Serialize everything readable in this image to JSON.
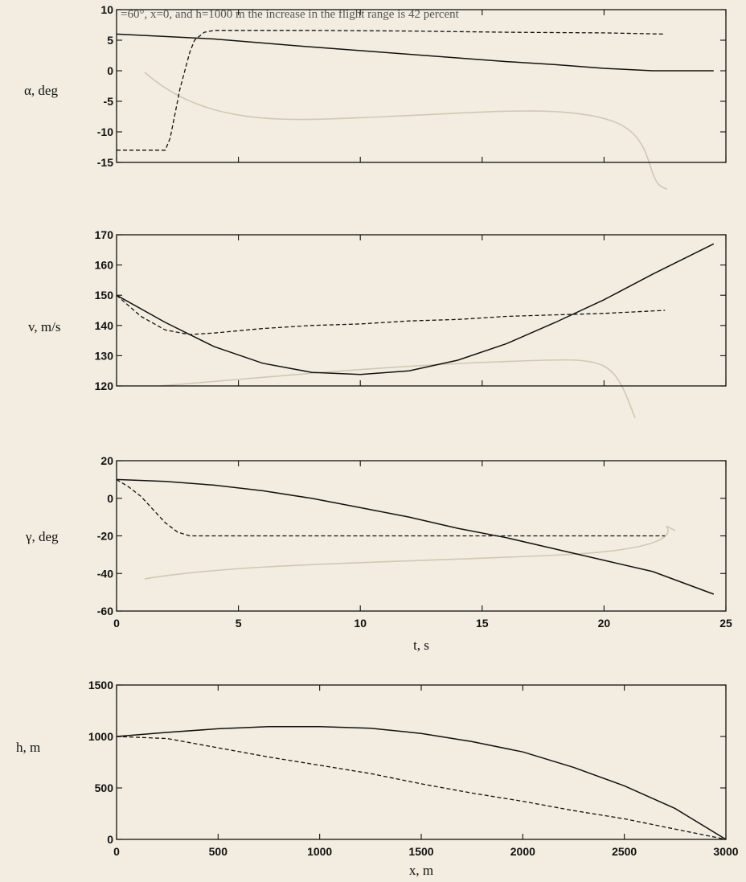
{
  "header_text": "=60°, x=0, and h=1000 m the increase in the flight range is 42 percent",
  "colors": {
    "line": "#111111",
    "background": "#f2ede0"
  },
  "chart_data": [
    {
      "type": "line",
      "id": "alpha",
      "ylabel": "α, deg",
      "xlabel": "",
      "xlim": [
        0,
        25
      ],
      "ylim": [
        -15,
        10
      ],
      "xticks": [
        0,
        5,
        10,
        15,
        20,
        25
      ],
      "xtick_labels": [],
      "yticks": [
        -15,
        -10,
        -5,
        0,
        5,
        10
      ],
      "ytick_labels": [
        "-15",
        "-10",
        "-5",
        "0",
        "5",
        "10"
      ],
      "series": [
        {
          "style": "solid",
          "x": [
            0,
            4,
            8,
            12,
            16,
            18,
            20,
            22,
            24.5
          ],
          "y": [
            6,
            5.2,
            3.9,
            2.7,
            1.5,
            1,
            0.4,
            0,
            0
          ]
        },
        {
          "style": "dashed",
          "x": [
            0,
            1,
            2,
            2.2,
            2.4,
            2.6,
            2.8,
            3,
            3.2,
            3.6,
            4,
            8,
            12,
            16,
            20,
            22.5
          ],
          "y": [
            -13,
            -13,
            -13,
            -11,
            -7,
            -3,
            0,
            3,
            5,
            6.3,
            6.6,
            6.6,
            6.5,
            6.3,
            6.2,
            6
          ]
        }
      ]
    },
    {
      "type": "line",
      "id": "v",
      "ylabel": "v, m/s",
      "xlabel": "",
      "xlim": [
        0,
        25
      ],
      "ylim": [
        120,
        170
      ],
      "xticks": [
        0,
        5,
        10,
        15,
        20,
        25
      ],
      "xtick_labels": [],
      "yticks": [
        120,
        130,
        140,
        150,
        160,
        170
      ],
      "ytick_labels": [
        "120",
        "130",
        "140",
        "150",
        "160",
        "170"
      ],
      "series": [
        {
          "style": "solid",
          "x": [
            0,
            2,
            4,
            6,
            8,
            10,
            12,
            14,
            16,
            18,
            20,
            22,
            24.5
          ],
          "y": [
            150,
            141,
            133,
            127.5,
            124.5,
            123.8,
            125,
            128.5,
            134,
            141,
            148.5,
            157,
            167
          ]
        },
        {
          "style": "dashed",
          "x": [
            0,
            1,
            2,
            3,
            4,
            6,
            8,
            10,
            12,
            14,
            16,
            18,
            20,
            22.5
          ],
          "y": [
            150,
            143,
            138.5,
            137,
            137.5,
            139,
            140,
            140.5,
            141.5,
            142,
            143,
            143.5,
            144,
            145
          ]
        }
      ]
    },
    {
      "type": "line",
      "id": "gamma",
      "ylabel": "γ, deg",
      "xlabel": "t, s",
      "xlim": [
        0,
        25
      ],
      "ylim": [
        -60,
        20
      ],
      "xticks": [
        0,
        5,
        10,
        15,
        20,
        25
      ],
      "xtick_labels": [
        "0",
        "5",
        "10",
        "15",
        "20",
        "25"
      ],
      "yticks": [
        -60,
        -40,
        -20,
        0,
        20
      ],
      "ytick_labels": [
        "-60",
        "-40",
        "-20",
        "0",
        "20"
      ],
      "series": [
        {
          "style": "solid",
          "x": [
            0,
            2,
            4,
            6,
            8,
            10,
            12,
            14,
            16,
            18,
            20,
            22,
            24.5
          ],
          "y": [
            10,
            9,
            7,
            4,
            0,
            -5,
            -10,
            -16,
            -21,
            -27,
            -33,
            -39,
            -51
          ]
        },
        {
          "style": "dashed",
          "x": [
            0,
            0.5,
            1,
            1.5,
            2,
            2.5,
            3,
            3.5,
            4,
            8,
            12,
            16,
            20,
            22.5
          ],
          "y": [
            10,
            6,
            1,
            -6,
            -13,
            -18,
            -20,
            -20,
            -20,
            -20,
            -20,
            -20,
            -20,
            -20
          ]
        }
      ]
    },
    {
      "type": "line",
      "id": "h",
      "ylabel": "h, m",
      "xlabel": "x, m",
      "xlim": [
        0,
        3000
      ],
      "ylim": [
        0,
        1500
      ],
      "xticks": [
        0,
        500,
        1000,
        1500,
        2000,
        2500,
        3000
      ],
      "xtick_labels": [
        "0",
        "500",
        "1000",
        "1500",
        "2000",
        "2500",
        "3000"
      ],
      "yticks": [
        0,
        500,
        1000,
        1500
      ],
      "ytick_labels": [
        "0",
        "500",
        "1000",
        "1500"
      ],
      "series": [
        {
          "style": "solid",
          "x": [
            0,
            250,
            500,
            750,
            1000,
            1250,
            1500,
            1750,
            2000,
            2250,
            2500,
            2750,
            3000
          ],
          "y": [
            1000,
            1040,
            1075,
            1095,
            1095,
            1080,
            1030,
            950,
            850,
            700,
            520,
            300,
            0
          ]
        },
        {
          "style": "dashed",
          "x": [
            0,
            250,
            500,
            750,
            1000,
            1250,
            1500,
            1750,
            2000,
            2250,
            2500,
            2750,
            3000
          ],
          "y": [
            1000,
            980,
            890,
            800,
            720,
            640,
            540,
            450,
            370,
            280,
            200,
            100,
            0
          ]
        }
      ]
    }
  ]
}
